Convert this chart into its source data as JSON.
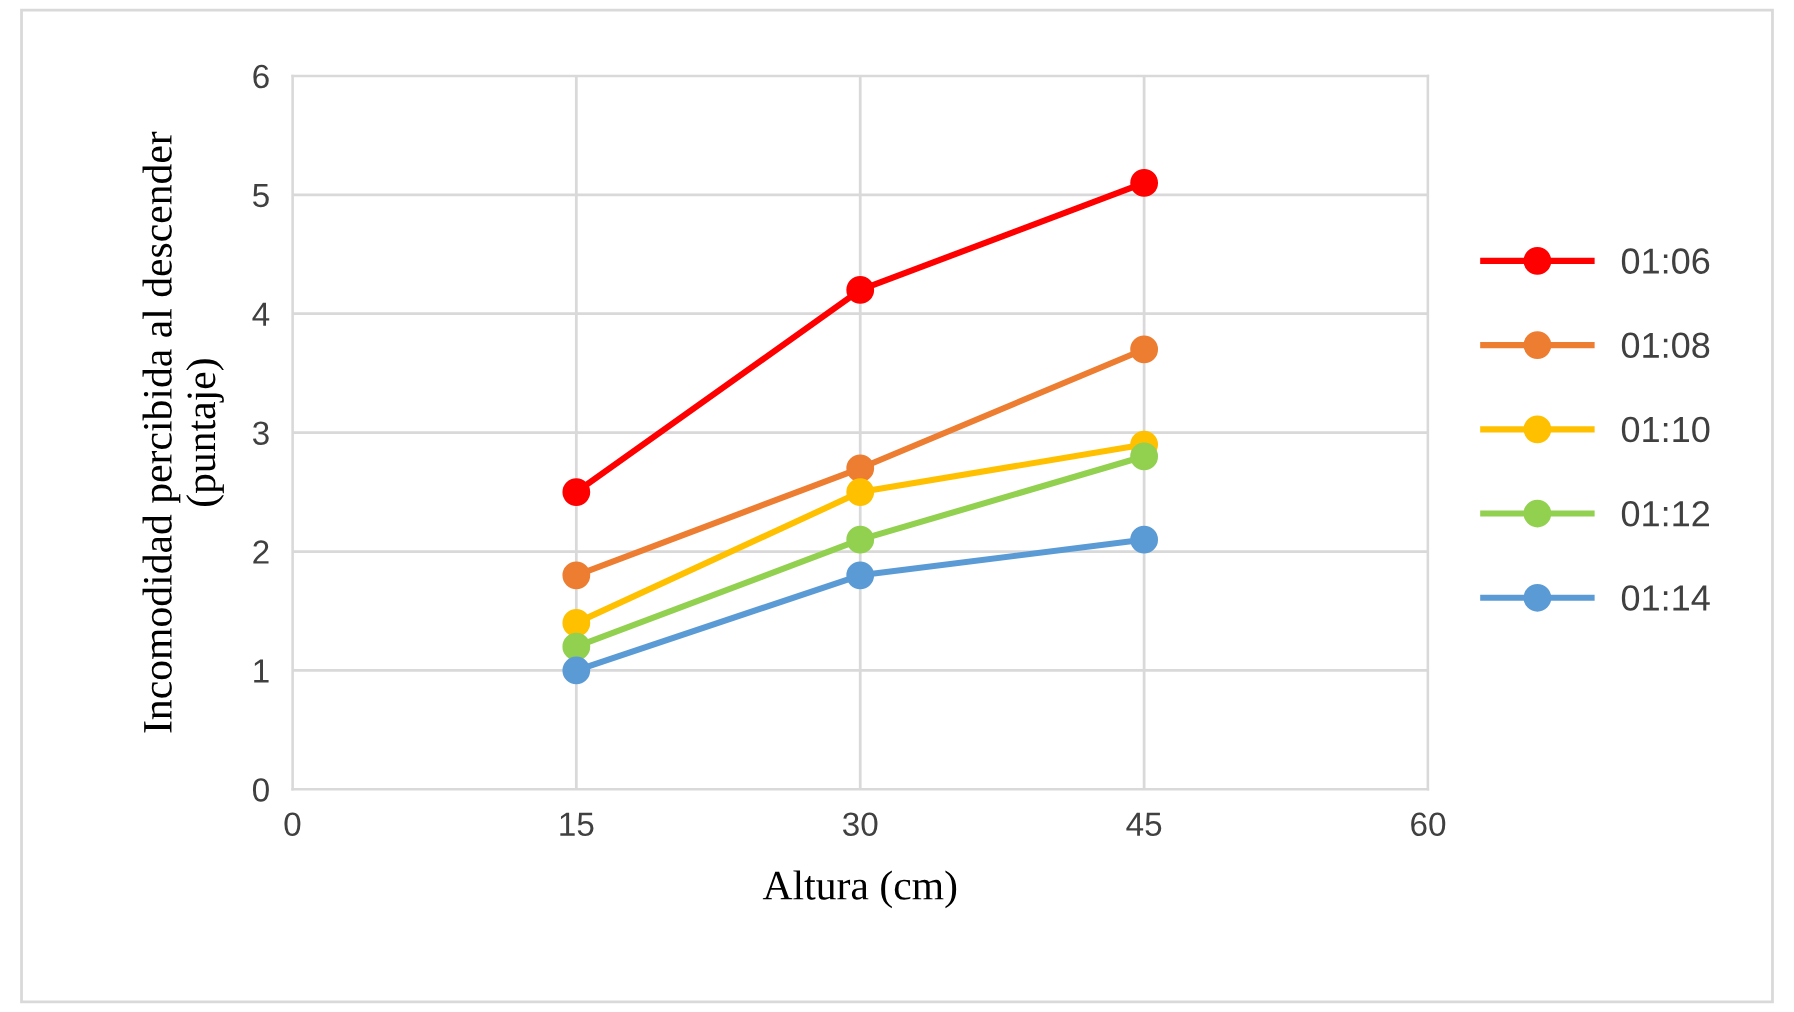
{
  "chart_data": {
    "type": "line",
    "xlabel": "Altura (cm)",
    "ylabel": "Incomodidad percibida al descender\n(puntaje)",
    "x": [
      15,
      30,
      45
    ],
    "xlim": [
      0,
      60
    ],
    "xticks": [
      0,
      15,
      30,
      45,
      60
    ],
    "ylim": [
      0,
      6
    ],
    "yticks": [
      0,
      1,
      2,
      3,
      4,
      5,
      6
    ],
    "grid": true,
    "legend": "right",
    "marker": "circle",
    "line_style": "solid",
    "series": [
      {
        "name": "01:06",
        "color": "#ff0000",
        "values": [
          2.5,
          4.2,
          5.1
        ]
      },
      {
        "name": "01:08",
        "color": "#ed7d31",
        "values": [
          1.8,
          2.7,
          3.7
        ]
      },
      {
        "name": "01:10",
        "color": "#ffc000",
        "values": [
          1.4,
          2.5,
          2.9
        ]
      },
      {
        "name": "01:12",
        "color": "#92d050",
        "values": [
          1.2,
          2.1,
          2.8
        ]
      },
      {
        "name": "01:14",
        "color": "#5b9bd5",
        "values": [
          1.0,
          1.8,
          2.1
        ]
      }
    ]
  }
}
